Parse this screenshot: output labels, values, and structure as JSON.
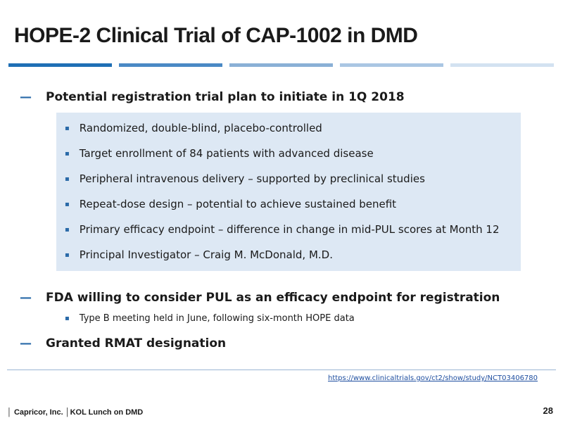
{
  "header": {
    "title": "HOPE-2 Clinical Trial of CAP-1002 in DMD"
  },
  "sections": [
    {
      "heading": "Potential registration trial plan to initiate in 1Q 2018",
      "bullets": [
        "Randomized, double-blind, placebo-controlled",
        "Target enrollment of 84 patients with advanced disease",
        "Peripheral intravenous delivery – supported by preclinical studies",
        "Repeat-dose design – potential to achieve sustained benefit",
        "Primary efficacy endpoint – difference in change in mid-PUL scores at Month 12",
        "Principal Investigator – Craig M. McDonald, M.D."
      ]
    },
    {
      "heading": "FDA willing to consider PUL as an efficacy endpoint for registration",
      "bullets": [
        "Type B meeting held in June, following six-month HOPE data"
      ]
    },
    {
      "heading": "Granted RMAT designation",
      "bullets": []
    }
  ],
  "link": "https://www.clinicaltrials.gov/ct2/show/study/NCT03406780",
  "footer": {
    "company": "Capricor, Inc.",
    "event": "KOL Lunch on DMD",
    "page": "28"
  }
}
